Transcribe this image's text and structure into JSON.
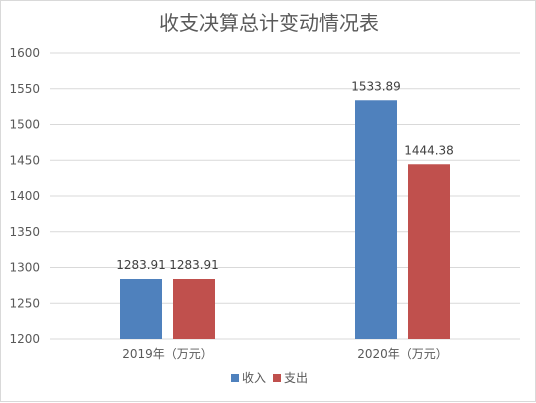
{
  "chart_data": {
    "type": "bar",
    "title": "收支决算总计变动情况表",
    "categories": [
      "2019年（万元）",
      "2020年（万元）"
    ],
    "series": [
      {
        "name": "收入",
        "values": [
          1283.91,
          1533.89
        ],
        "labels": [
          "1283.91",
          "1533.89"
        ],
        "color": "#4f81bd"
      },
      {
        "name": "支出",
        "values": [
          1283.91,
          1444.38
        ],
        "labels": [
          "1283.91",
          "1444.38"
        ],
        "color": "#c0504d"
      }
    ],
    "ylim": [
      1200,
      1600
    ],
    "yticks": [
      "1200",
      "1250",
      "1300",
      "1350",
      "1400",
      "1450",
      "1500",
      "1550",
      "1600"
    ],
    "grid": true,
    "legend": "bottom",
    "gridline_color": "#d9d9d9"
  }
}
